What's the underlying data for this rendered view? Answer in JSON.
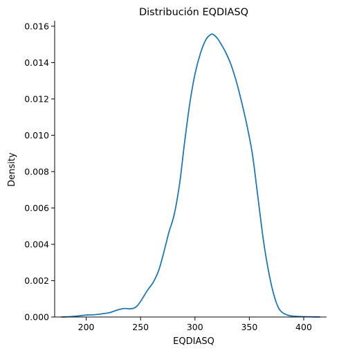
{
  "chart_data": {
    "type": "line",
    "title": "Distribución EQDIASQ",
    "xlabel": "EQDIASQ",
    "ylabel": "Density",
    "xlim": [
      171,
      421
    ],
    "ylim": [
      0,
      0.0163
    ],
    "xticks": [
      200,
      250,
      300,
      350,
      400
    ],
    "xtick_labels": [
      "200",
      "250",
      "300",
      "350",
      "400"
    ],
    "yticks": [
      0,
      0.002,
      0.004,
      0.006,
      0.008,
      0.01,
      0.012,
      0.014,
      0.016
    ],
    "ytick_labels": [
      "0.000",
      "0.002",
      "0.004",
      "0.006",
      "0.008",
      "0.010",
      "0.012",
      "0.014",
      "0.016"
    ],
    "grid": false,
    "legend": "none",
    "series": [
      {
        "color": "#1f77b4",
        "x": [
          177,
          185,
          193,
          200,
          208,
          215,
          222,
          228,
          233,
          236,
          240,
          244,
          247,
          251,
          256,
          262,
          267,
          272,
          276,
          281,
          286,
          290,
          295,
          300,
          305,
          310,
          315,
          318,
          321,
          324,
          328,
          333,
          338,
          343,
          348,
          353,
          358,
          363,
          368,
          373,
          378,
          385,
          392,
          400,
          408,
          415
        ],
        "y": [
          0.0,
          2e-05,
          6e-05,
          0.00011,
          0.00013,
          0.00018,
          0.00025,
          0.00037,
          0.00045,
          0.00047,
          0.00045,
          0.00049,
          0.00062,
          0.00095,
          0.00144,
          0.00195,
          0.00262,
          0.00371,
          0.00465,
          0.00566,
          0.00738,
          0.00938,
          0.01165,
          0.01336,
          0.0145,
          0.01525,
          0.01556,
          0.01549,
          0.0153,
          0.01502,
          0.01459,
          0.01391,
          0.01297,
          0.01181,
          0.01049,
          0.00889,
          0.00654,
          0.0042,
          0.00242,
          0.00113,
          0.00039,
          0.00011,
          4e-05,
          2e-05,
          1e-05,
          0.0
        ]
      }
    ]
  }
}
